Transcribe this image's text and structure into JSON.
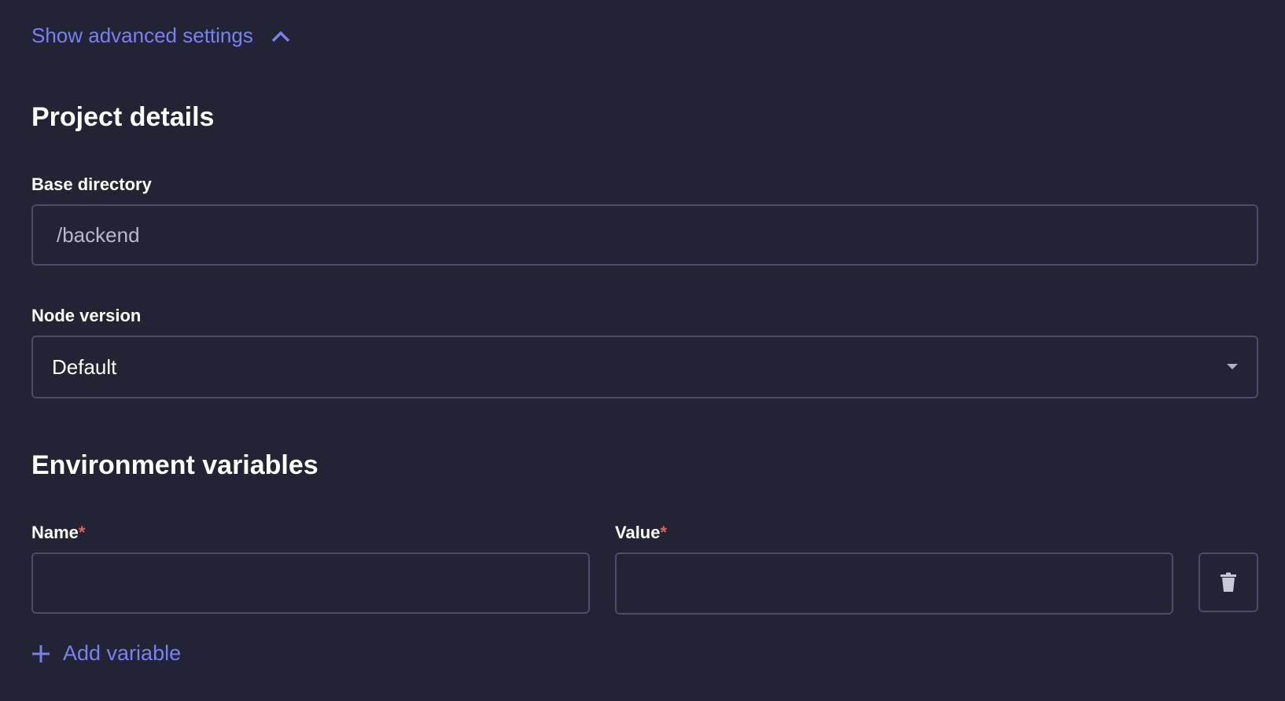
{
  "advanced_toggle": {
    "label": "Show advanced settings",
    "icon": "chevron-up-icon"
  },
  "project_details": {
    "heading": "Project details",
    "base_directory": {
      "label": "Base directory",
      "value": "",
      "placeholder": "/backend"
    },
    "node_version": {
      "label": "Node version",
      "selected": "Default"
    }
  },
  "environment_variables": {
    "heading": "Environment variables",
    "name_label": "Name",
    "value_label": "Value",
    "required_mark": "*",
    "rows": [
      {
        "name": "",
        "value": ""
      }
    ],
    "delete_icon": "trash-icon",
    "add_label": "Add variable"
  },
  "colors": {
    "background": "#222335",
    "accent": "#7b80f0",
    "border": "#4a4c68",
    "required": "#e0605a"
  }
}
